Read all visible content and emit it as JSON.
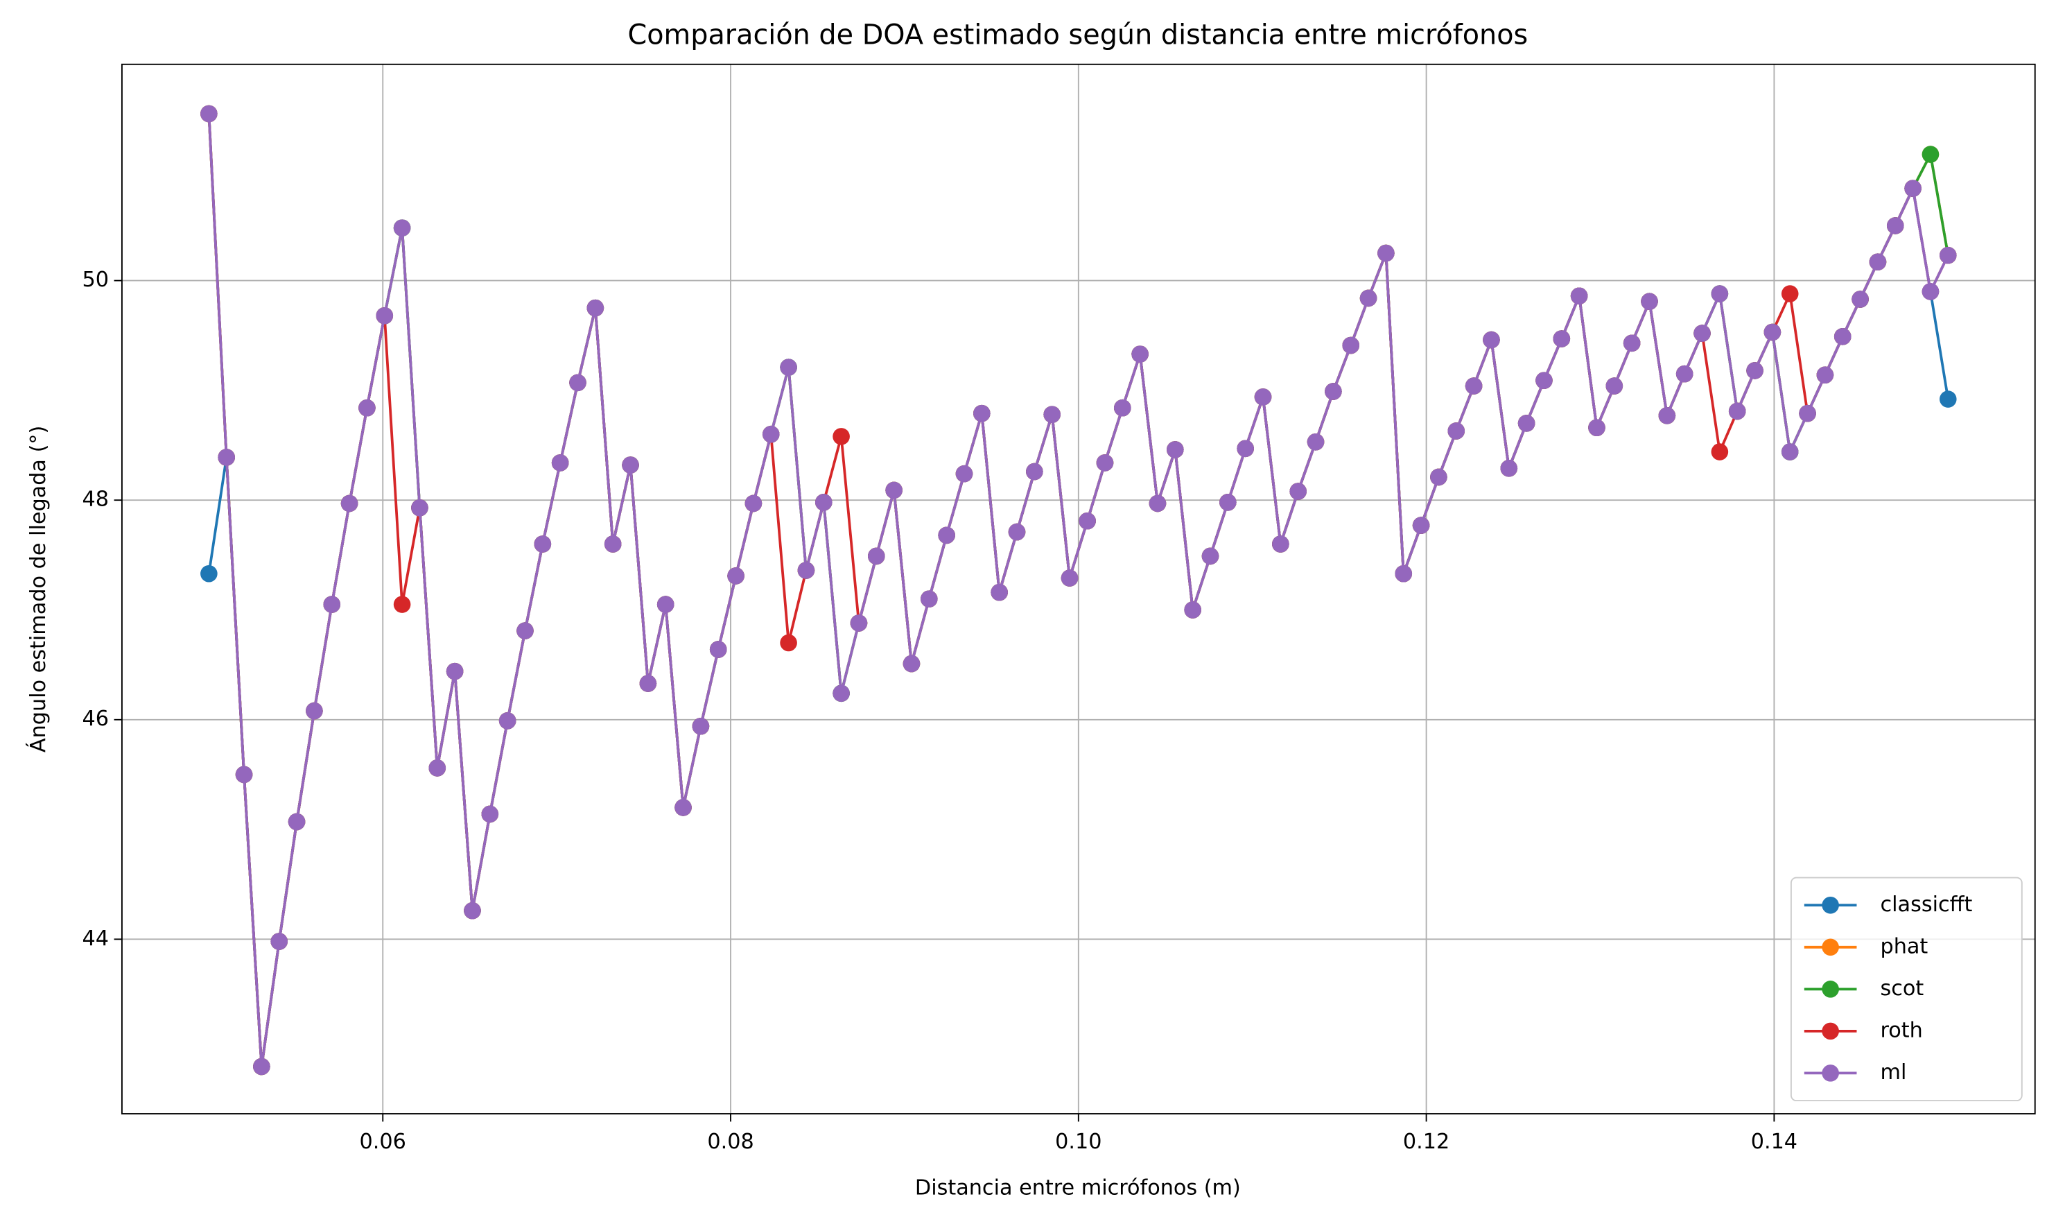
{
  "chart_data": {
    "type": "line",
    "title": "Comparación de DOA estimado según distancia entre micrófonos",
    "xlabel": "Distancia entre micrófonos (m)",
    "ylabel": "Ángulo estimado de llegada (°)",
    "xlim": [
      0.045,
      0.155
    ],
    "ylim": [
      42.41,
      51.97
    ],
    "xticks": [
      0.06,
      0.08,
      {
        "value": 0.1,
        "label": "0.10"
      },
      0.12,
      0.14
    ],
    "yticks": [
      44,
      46,
      48,
      50
    ],
    "grid": true,
    "legend": "lower right",
    "x": [
      0.05,
      0.05101,
      0.05202,
      0.05303,
      0.05404,
      0.05505,
      0.05606,
      0.05707,
      0.05808,
      0.05909,
      0.0601,
      0.06111,
      0.06212,
      0.06313,
      0.06414,
      0.06515,
      0.06616,
      0.06717,
      0.06818,
      0.06919,
      0.0702,
      0.07121,
      0.07222,
      0.07323,
      0.07424,
      0.07525,
      0.07626,
      0.07727,
      0.07828,
      0.07929,
      0.0803,
      0.08131,
      0.08232,
      0.08333,
      0.08434,
      0.08535,
      0.08636,
      0.08737,
      0.08838,
      0.08939,
      0.0904,
      0.09141,
      0.09242,
      0.09343,
      0.09444,
      0.09545,
      0.09646,
      0.09747,
      0.09848,
      0.09949,
      0.10051,
      0.10152,
      0.10253,
      0.10354,
      0.10455,
      0.10556,
      0.10657,
      0.10758,
      0.10859,
      0.1096,
      0.11061,
      0.11162,
      0.11263,
      0.11364,
      0.11465,
      0.11566,
      0.11667,
      0.11768,
      0.11869,
      0.1197,
      0.12071,
      0.12172,
      0.12273,
      0.12374,
      0.12475,
      0.12576,
      0.12677,
      0.12778,
      0.12879,
      0.1298,
      0.13081,
      0.13182,
      0.13283,
      0.13384,
      0.13485,
      0.13586,
      0.13687,
      0.13788,
      0.13889,
      0.1399,
      0.14091,
      0.14192,
      0.14293,
      0.14394,
      0.14495,
      0.14596,
      0.14697,
      0.14798,
      0.14899,
      0.15
    ],
    "series": [
      {
        "name": "classicfft",
        "color": "#1f77b4",
        "values": [
          47.33,
          48.39,
          45.5,
          42.84,
          43.98,
          45.07,
          46.08,
          47.05,
          47.97,
          48.84,
          49.68,
          50.48,
          47.93,
          45.56,
          46.44,
          44.26,
          45.14,
          45.99,
          46.81,
          47.6,
          48.34,
          49.07,
          49.75,
          47.6,
          48.32,
          46.33,
          47.05,
          45.2,
          45.94,
          46.64,
          47.31,
          47.97,
          48.6,
          49.21,
          47.36,
          47.98,
          46.24,
          46.88,
          47.49,
          48.09,
          46.51,
          47.1,
          47.68,
          48.24,
          48.79,
          47.16,
          47.71,
          48.26,
          48.78,
          47.29,
          47.81,
          48.34,
          48.84,
          49.33,
          47.97,
          48.46,
          47.0,
          47.49,
          47.98,
          48.47,
          48.94,
          47.6,
          48.08,
          48.53,
          48.99,
          49.41,
          49.84,
          50.25,
          47.33,
          47.77,
          48.21,
          48.63,
          49.04,
          49.46,
          48.29,
          48.7,
          49.09,
          49.47,
          49.86,
          48.66,
          49.04,
          49.43,
          49.81,
          48.77,
          49.15,
          49.52,
          49.88,
          48.81,
          49.18,
          49.53,
          48.44,
          48.79,
          49.14,
          49.49,
          49.83,
          50.17,
          50.5,
          50.84,
          49.9,
          48.92
        ]
      },
      {
        "name": "phat",
        "color": "#ff7f0e",
        "values": [
          51.52,
          48.39,
          45.5,
          42.84,
          43.98,
          45.07,
          46.08,
          47.05,
          47.97,
          48.84,
          49.68,
          50.48,
          47.93,
          45.56,
          46.44,
          44.26,
          45.14,
          45.99,
          46.81,
          47.6,
          48.34,
          49.07,
          49.75,
          47.6,
          48.32,
          46.33,
          47.05,
          45.2,
          45.94,
          46.64,
          47.31,
          47.97,
          48.6,
          49.21,
          47.36,
          47.98,
          46.24,
          46.88,
          47.49,
          48.09,
          46.51,
          47.1,
          47.68,
          48.24,
          48.79,
          47.16,
          47.71,
          48.26,
          48.78,
          47.29,
          47.81,
          48.34,
          48.84,
          49.33,
          47.97,
          48.46,
          47.0,
          47.49,
          47.98,
          48.47,
          48.94,
          47.6,
          48.08,
          48.53,
          48.99,
          49.41,
          49.84,
          50.25,
          47.33,
          47.77,
          48.21,
          48.63,
          49.04,
          49.46,
          48.29,
          48.7,
          49.09,
          49.47,
          49.86,
          48.66,
          49.04,
          49.43,
          49.81,
          48.77,
          49.15,
          49.52,
          49.88,
          48.81,
          49.18,
          49.53,
          48.44,
          48.79,
          49.14,
          49.49,
          49.83,
          50.17,
          50.5,
          50.84,
          51.15,
          50.23
        ]
      },
      {
        "name": "scot",
        "color": "#2ca02c",
        "values": [
          51.52,
          48.39,
          45.5,
          42.84,
          43.98,
          45.07,
          46.08,
          47.05,
          47.97,
          48.84,
          49.68,
          50.48,
          47.93,
          45.56,
          46.44,
          44.26,
          45.14,
          45.99,
          46.81,
          47.6,
          48.34,
          49.07,
          49.75,
          47.6,
          48.32,
          46.33,
          47.05,
          45.2,
          45.94,
          46.64,
          47.31,
          47.97,
          48.6,
          49.21,
          47.36,
          47.98,
          46.24,
          46.88,
          47.49,
          48.09,
          46.51,
          47.1,
          47.68,
          48.24,
          48.79,
          47.16,
          47.71,
          48.26,
          48.78,
          47.29,
          47.81,
          48.34,
          48.84,
          49.33,
          47.97,
          48.46,
          47.0,
          47.49,
          47.98,
          48.47,
          48.94,
          47.6,
          48.08,
          48.53,
          48.99,
          49.41,
          49.84,
          50.25,
          47.33,
          47.77,
          48.21,
          48.63,
          49.04,
          49.46,
          48.29,
          48.7,
          49.09,
          49.47,
          49.86,
          48.66,
          49.04,
          49.43,
          49.81,
          48.77,
          49.15,
          49.52,
          49.88,
          48.81,
          49.18,
          49.53,
          48.44,
          48.79,
          49.14,
          49.49,
          49.83,
          50.17,
          50.5,
          50.84,
          51.15,
          50.23
        ]
      },
      {
        "name": "roth",
        "color": "#d62728",
        "values": [
          51.52,
          48.39,
          45.5,
          42.84,
          43.98,
          45.07,
          46.08,
          47.05,
          47.97,
          48.84,
          49.68,
          47.05,
          47.93,
          45.56,
          46.44,
          44.26,
          45.14,
          45.99,
          46.81,
          47.6,
          48.34,
          49.07,
          49.75,
          47.6,
          48.32,
          46.33,
          47.05,
          45.2,
          45.94,
          46.64,
          47.31,
          47.97,
          48.6,
          46.7,
          47.36,
          47.98,
          48.58,
          46.88,
          47.49,
          48.09,
          46.51,
          47.1,
          47.68,
          48.24,
          48.79,
          47.16,
          47.71,
          48.26,
          48.78,
          47.29,
          47.81,
          48.34,
          48.84,
          49.33,
          47.97,
          48.46,
          47.0,
          47.49,
          47.98,
          48.47,
          48.94,
          47.6,
          48.08,
          48.53,
          48.99,
          49.41,
          49.84,
          50.25,
          47.33,
          47.77,
          48.21,
          48.63,
          49.04,
          49.46,
          48.29,
          48.7,
          49.09,
          49.47,
          49.86,
          48.66,
          49.04,
          49.43,
          49.81,
          48.77,
          49.15,
          49.52,
          48.44,
          48.81,
          49.18,
          49.53,
          49.88,
          48.79,
          49.14,
          49.49,
          49.83,
          50.17,
          50.5,
          50.84,
          49.9,
          50.23
        ]
      },
      {
        "name": "ml",
        "color": "#9467bd",
        "values": [
          51.52,
          48.39,
          45.5,
          42.84,
          43.98,
          45.07,
          46.08,
          47.05,
          47.97,
          48.84,
          49.68,
          50.48,
          47.93,
          45.56,
          46.44,
          44.26,
          45.14,
          45.99,
          46.81,
          47.6,
          48.34,
          49.07,
          49.75,
          47.6,
          48.32,
          46.33,
          47.05,
          45.2,
          45.94,
          46.64,
          47.31,
          47.97,
          48.6,
          49.21,
          47.36,
          47.98,
          46.24,
          46.88,
          47.49,
          48.09,
          46.51,
          47.1,
          47.68,
          48.24,
          48.79,
          47.16,
          47.71,
          48.26,
          48.78,
          47.29,
          47.81,
          48.34,
          48.84,
          49.33,
          47.97,
          48.46,
          47.0,
          47.49,
          47.98,
          48.47,
          48.94,
          47.6,
          48.08,
          48.53,
          48.99,
          49.41,
          49.84,
          50.25,
          47.33,
          47.77,
          48.21,
          48.63,
          49.04,
          49.46,
          48.29,
          48.7,
          49.09,
          49.47,
          49.86,
          48.66,
          49.04,
          49.43,
          49.81,
          48.77,
          49.15,
          49.52,
          49.88,
          48.81,
          49.18,
          49.53,
          48.44,
          48.79,
          49.14,
          49.49,
          49.83,
          50.17,
          50.5,
          50.84,
          49.9,
          50.23
        ]
      }
    ]
  }
}
